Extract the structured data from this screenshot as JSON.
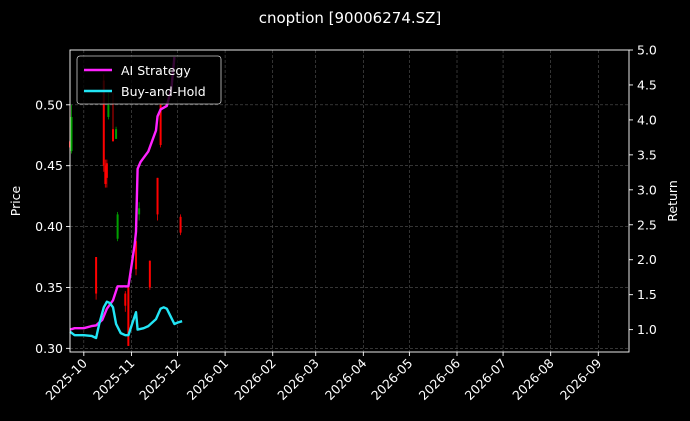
{
  "chart_data": {
    "type": "line",
    "title": "cnoption [90006274.SZ]",
    "ylabel": "Price",
    "y2label": "Return",
    "ylim": [
      0.297,
      0.545
    ],
    "y2lim": [
      0.68,
      5.0
    ],
    "y_ticks": [
      "0.30",
      "0.35",
      "0.40",
      "0.45",
      "0.50"
    ],
    "y2_ticks": [
      "1.0",
      "1.5",
      "2.0",
      "2.5",
      "3.0",
      "3.5",
      "4.0",
      "4.5",
      "5.0"
    ],
    "x_ticks": [
      "2025-10",
      "2025-11",
      "2025-12",
      "2026-01",
      "2026-02",
      "2026-03",
      "2026-04",
      "2026-05",
      "2026-06",
      "2026-07",
      "2026-08",
      "2026-09"
    ],
    "grid": true,
    "legend_position": "top-left",
    "colors": {
      "background": "#000000",
      "up": "#00a000",
      "down": "#ff0000",
      "ai": "#ff22ff",
      "bh": "#22e5f5",
      "grid": "#555555"
    },
    "candles": [
      {
        "date": "2025-09-22",
        "open": 0.47,
        "close": 0.465,
        "high": 0.5,
        "low": 0.46
      },
      {
        "date": "2025-09-23",
        "open": 0.462,
        "close": 0.49,
        "high": 0.5,
        "low": 0.46
      },
      {
        "date": "2025-10-09",
        "open": 0.375,
        "close": 0.345,
        "high": 0.375,
        "low": 0.34
      },
      {
        "date": "2025-10-14",
        "open": 0.52,
        "close": 0.45,
        "high": 0.525,
        "low": 0.445
      },
      {
        "date": "2025-10-15",
        "open": 0.45,
        "close": 0.435,
        "high": 0.455,
        "low": 0.432
      },
      {
        "date": "2025-10-16",
        "open": 0.452,
        "close": 0.44,
        "high": 0.455,
        "low": 0.432
      },
      {
        "date": "2025-10-17",
        "open": 0.49,
        "close": 0.5,
        "high": 0.51,
        "low": 0.488
      },
      {
        "date": "2025-10-20",
        "open": 0.48,
        "close": 0.47,
        "high": 0.51,
        "low": 0.47
      },
      {
        "date": "2025-10-22",
        "open": 0.472,
        "close": 0.48,
        "high": 0.482,
        "low": 0.472
      },
      {
        "date": "2025-10-23",
        "open": 0.39,
        "close": 0.41,
        "high": 0.412,
        "low": 0.388
      },
      {
        "date": "2025-10-28",
        "open": 0.345,
        "close": 0.335,
        "high": 0.347,
        "low": 0.33
      },
      {
        "date": "2025-10-30",
        "open": 0.35,
        "close": 0.302,
        "high": 0.35,
        "low": 0.302
      },
      {
        "date": "2025-11-04",
        "open": 0.388,
        "close": 0.365,
        "high": 0.39,
        "low": 0.36
      },
      {
        "date": "2025-11-06",
        "open": 0.41,
        "close": 0.415,
        "high": 0.42,
        "low": 0.405
      },
      {
        "date": "2025-11-13",
        "open": 0.372,
        "close": 0.35,
        "high": 0.372,
        "low": 0.348
      },
      {
        "date": "2025-11-18",
        "open": 0.44,
        "close": 0.41,
        "high": 0.44,
        "low": 0.405
      },
      {
        "date": "2025-11-20",
        "open": 0.5,
        "close": 0.467,
        "high": 0.5,
        "low": 0.465
      },
      {
        "date": "2025-12-03",
        "open": 0.408,
        "close": 0.395,
        "high": 0.41,
        "low": 0.393
      }
    ],
    "series": [
      {
        "name": "AI Strategy",
        "x": [
          "2025-09-22",
          "2025-09-25",
          "2025-10-01",
          "2025-10-06",
          "2025-10-09",
          "2025-10-13",
          "2025-10-16",
          "2025-10-20",
          "2025-10-23",
          "2025-10-27",
          "2025-10-30",
          "2025-11-03",
          "2025-11-04",
          "2025-11-05",
          "2025-11-07",
          "2025-11-12",
          "2025-11-17",
          "2025-11-18",
          "2025-11-20",
          "2025-11-24",
          "2025-11-27",
          "2025-11-29"
        ],
        "values": [
          1.0,
          1.02,
          1.02,
          1.05,
          1.06,
          1.14,
          1.3,
          1.42,
          1.62,
          1.62,
          1.62,
          2.2,
          2.4,
          3.3,
          3.4,
          3.55,
          3.85,
          4.05,
          4.15,
          4.2,
          4.45,
          4.9
        ]
      },
      {
        "name": "Buy-and-Hold",
        "x": [
          "2025-09-22",
          "2025-09-25",
          "2025-10-01",
          "2025-10-06",
          "2025-10-09",
          "2025-10-11",
          "2025-10-14",
          "2025-10-16",
          "2025-10-18",
          "2025-10-20",
          "2025-10-22",
          "2025-10-25",
          "2025-10-28",
          "2025-10-30",
          "2025-11-02",
          "2025-11-04",
          "2025-11-05",
          "2025-11-09",
          "2025-11-12",
          "2025-11-17",
          "2025-11-20",
          "2025-11-22",
          "2025-11-24",
          "2025-11-29",
          "2025-12-01",
          "2025-12-04"
        ],
        "values": [
          0.97,
          0.92,
          0.92,
          0.91,
          0.88,
          1.08,
          1.32,
          1.4,
          1.38,
          1.32,
          1.08,
          0.95,
          0.92,
          0.92,
          1.12,
          1.25,
          1.0,
          1.02,
          1.05,
          1.15,
          1.3,
          1.32,
          1.3,
          1.08,
          1.1,
          1.12
        ]
      }
    ]
  }
}
